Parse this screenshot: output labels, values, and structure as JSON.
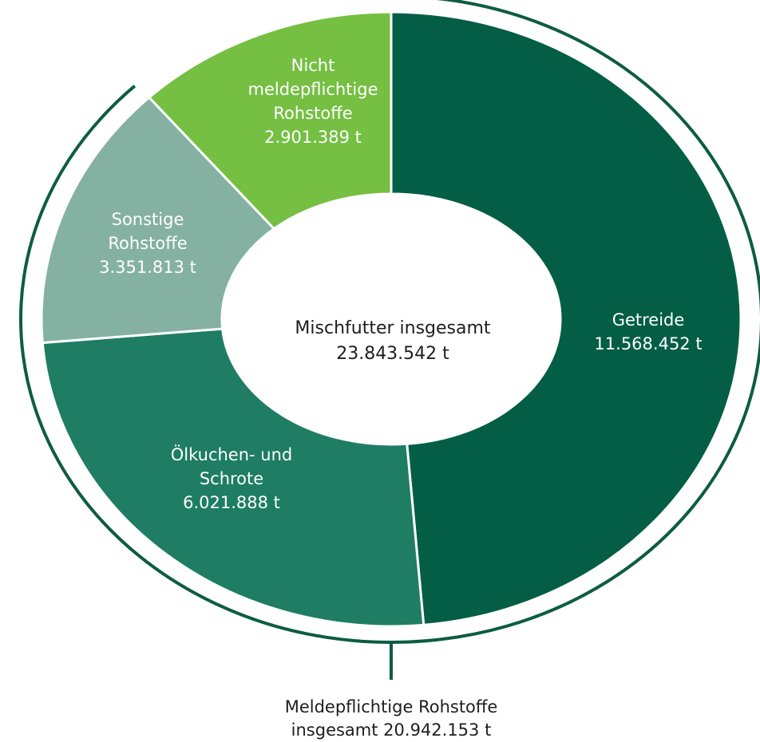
{
  "chart_data": {
    "type": "pie",
    "center": {
      "line1": "Mischfutter insgesamt",
      "line2": "23.843.542 t"
    },
    "segments": [
      {
        "label_lines": [
          "Getreide"
        ],
        "value": 11568452,
        "value_text": "11.568.452 t",
        "color": "#035e45"
      },
      {
        "label_lines": [
          "Ölkuchen- und",
          "Schrote"
        ],
        "value": 6021888,
        "value_text": "6.021.888 t",
        "color": "#1e7d62"
      },
      {
        "label_lines": [
          "Sonstige",
          "Rohstoffe"
        ],
        "value": 3351813,
        "value_text": "3.351.813 t",
        "color": "#84b1a2"
      },
      {
        "label_lines": [
          "Nicht",
          "meldepflichtige",
          "Rohstoffe"
        ],
        "value": 2901389,
        "value_text": "2.901.389 t",
        "color": "#75bf43"
      }
    ],
    "bracket": {
      "line1": "Meldepflichtige Rohstoffe",
      "line2": "insgesamt 20.942.153 t",
      "color": "#0d5c43"
    }
  }
}
